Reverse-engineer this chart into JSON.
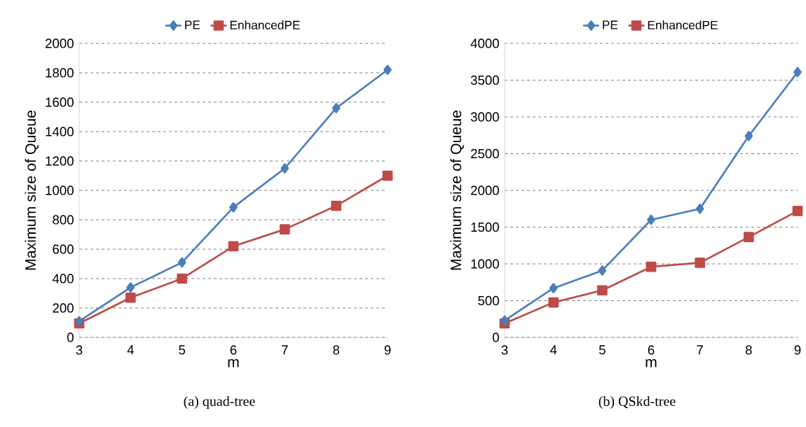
{
  "chart_data": [
    {
      "type": "line",
      "categories": [
        "3",
        "4",
        "5",
        "6",
        "7",
        "8",
        "9"
      ],
      "xlabel": "m",
      "ylabel": "Maximum size of Queue",
      "ylim": [
        0,
        2000
      ],
      "yticks": [
        0,
        200,
        400,
        600,
        800,
        1000,
        1200,
        1400,
        1600,
        1800,
        2000
      ],
      "grid": "y",
      "legend": "top",
      "annotations": [
        "(a) quad-tree"
      ],
      "series": [
        {
          "name": "PE",
          "color": "#4a7ebb",
          "marker": "diamond",
          "values": [
            110,
            340,
            510,
            885,
            1150,
            1560,
            1820
          ]
        },
        {
          "name": "EnhancedPE",
          "color": "#be4b48",
          "marker": "square",
          "values": [
            95,
            270,
            400,
            620,
            735,
            895,
            1100
          ]
        }
      ]
    },
    {
      "type": "line",
      "categories": [
        "3",
        "4",
        "5",
        "6",
        "7",
        "8",
        "9"
      ],
      "xlabel": "m",
      "ylabel": "Maximum size of Queue",
      "ylim": [
        0,
        4000
      ],
      "yticks": [
        0,
        500,
        1000,
        1500,
        2000,
        2500,
        3000,
        3500,
        4000
      ],
      "grid": "y",
      "legend": "top",
      "annotations": [
        "(b) QSkd-tree"
      ],
      "series": [
        {
          "name": "PE",
          "color": "#4a7ebb",
          "marker": "diamond",
          "values": [
            230,
            670,
            910,
            1600,
            1750,
            2740,
            3610
          ]
        },
        {
          "name": "EnhancedPE",
          "color": "#be4b48",
          "marker": "square",
          "values": [
            190,
            475,
            640,
            960,
            1015,
            1365,
            1720
          ]
        }
      ]
    }
  ]
}
